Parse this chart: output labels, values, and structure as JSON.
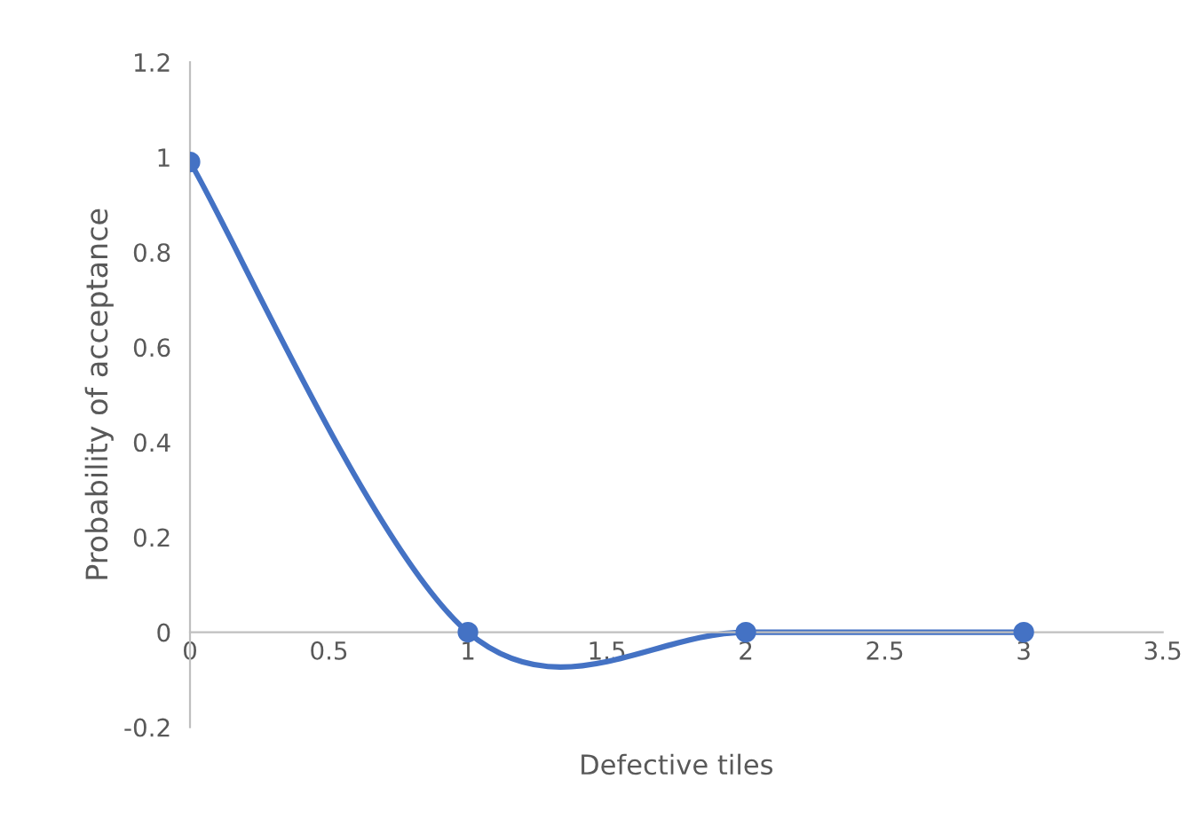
{
  "chart_data": {
    "type": "line",
    "xlabel": "Defective tiles",
    "ylabel": "Probability of acceptance",
    "x": [
      0,
      1,
      2,
      3
    ],
    "series": [
      {
        "color": "#4472c4",
        "values": [
          0.99,
          0,
          0,
          0
        ]
      }
    ],
    "xlim": [
      0,
      3.5
    ],
    "xticks": [
      0,
      0.5,
      1,
      1.5,
      2,
      2.5,
      3,
      3.5
    ],
    "ylim": [
      -0.2,
      1.2
    ],
    "yticks": [
      -0.2,
      0,
      0.2,
      0.4,
      0.6,
      0.8,
      1,
      1.2
    ],
    "grid": false,
    "legend": false,
    "marker": "circle",
    "line_style": "solid"
  }
}
